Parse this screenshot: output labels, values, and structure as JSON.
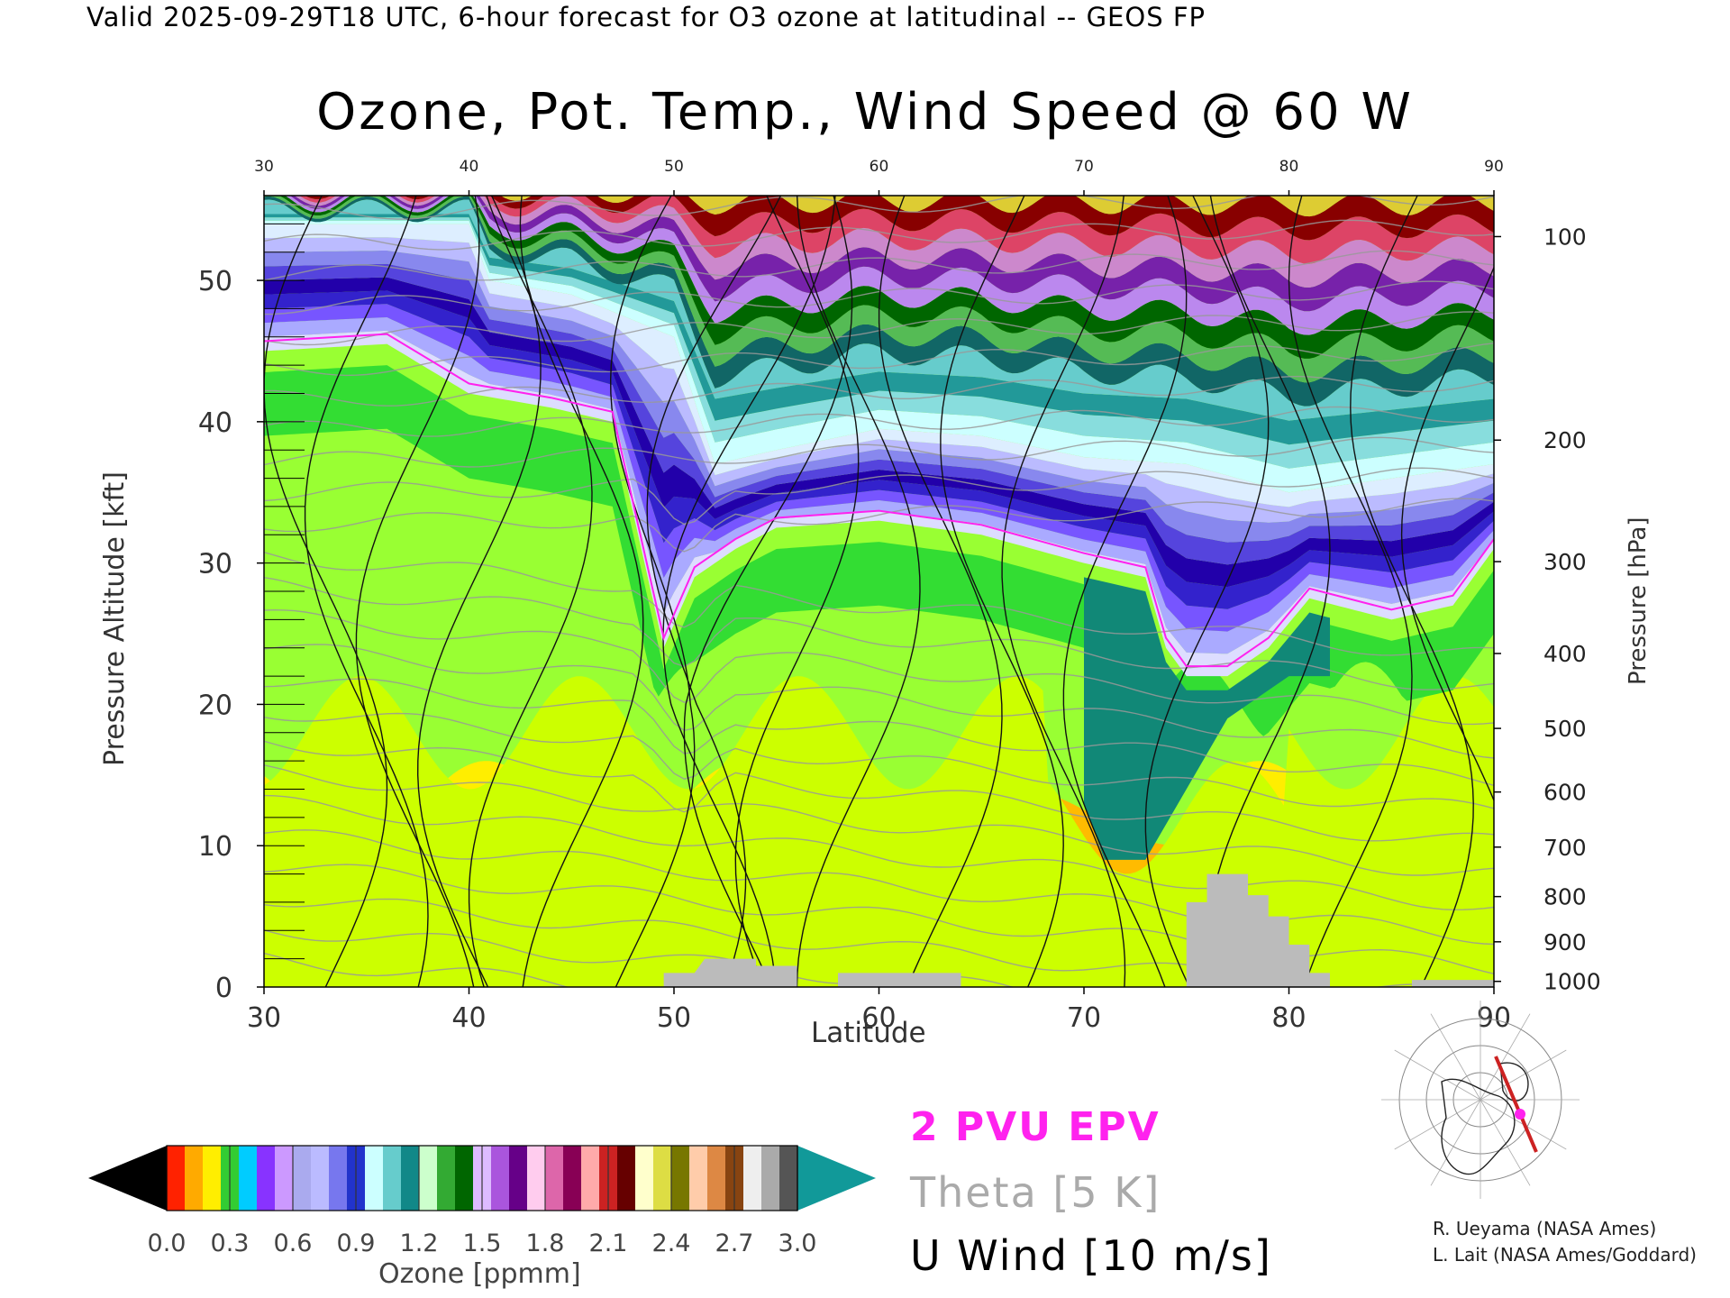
{
  "header": {
    "valid_line": "Valid 2025-09-29T18 UTC, 6-hour forecast for O3 ozone at latitudinal -- GEOS FP"
  },
  "chart_data": {
    "type": "heatmap",
    "title": "Ozone, Pot. Temp., Wind Speed @ 60 W",
    "xlabel": "Latitude",
    "ylabel": "Pressure Altitude [kft]",
    "ylabel_right": "Pressure [hPa]",
    "xlim": [
      30,
      90
    ],
    "ylim": [
      0,
      56
    ],
    "x_ticks": [
      30,
      40,
      50,
      60,
      70,
      80,
      90
    ],
    "y_ticks": [
      0,
      10,
      20,
      30,
      40,
      50
    ],
    "pressure_ticks": [
      {
        "label": "100",
        "kft": 53.1
      },
      {
        "label": "200",
        "kft": 38.7
      },
      {
        "label": "300",
        "kft": 30.1
      },
      {
        "label": "400",
        "kft": 23.6
      },
      {
        "label": "500",
        "kft": 18.3
      },
      {
        "label": "600",
        "kft": 13.8
      },
      {
        "label": "700",
        "kft": 9.9
      },
      {
        "label": "800",
        "kft": 6.4
      },
      {
        "label": "900",
        "kft": 3.2
      },
      {
        "label": "1000",
        "kft": 0.4
      }
    ],
    "tropopause_kft": [
      [
        30,
        45
      ],
      [
        36,
        45.5
      ],
      [
        40,
        42
      ],
      [
        44,
        41
      ],
      [
        47,
        40
      ],
      [
        49.5,
        24
      ],
      [
        51,
        29
      ],
      [
        53,
        31
      ],
      [
        55,
        32.5
      ],
      [
        60,
        33
      ],
      [
        65,
        32
      ],
      [
        70,
        30
      ],
      [
        73,
        29
      ],
      [
        74,
        24
      ],
      [
        75,
        22
      ],
      [
        77,
        22
      ],
      [
        79,
        24
      ],
      [
        81,
        27.5
      ],
      [
        85,
        26
      ],
      [
        88,
        27
      ],
      [
        90,
        31
      ]
    ],
    "stratosphere_top_kft": [
      [
        30,
        54
      ],
      [
        40,
        54
      ],
      [
        41,
        50
      ],
      [
        45,
        49
      ],
      [
        50,
        46
      ],
      [
        52,
        37
      ],
      [
        55,
        38
      ],
      [
        60,
        39.5
      ],
      [
        65,
        39
      ],
      [
        70,
        37.5
      ],
      [
        75,
        37
      ],
      [
        80,
        35
      ],
      [
        85,
        36
      ],
      [
        90,
        37
      ]
    ],
    "dry_tongue_kft": [
      [
        70,
        13
      ],
      [
        71,
        9
      ],
      [
        73,
        9
      ],
      [
        75,
        14
      ],
      [
        77,
        19
      ],
      [
        80,
        22
      ],
      [
        82,
        22
      ]
    ],
    "terrain_kft": [
      [
        49.5,
        0
      ],
      [
        49.5,
        1
      ],
      [
        51,
        1
      ],
      [
        51.5,
        2
      ],
      [
        54,
        2
      ],
      [
        54,
        1.5
      ],
      [
        56,
        1.5
      ],
      [
        56,
        0
      ],
      [
        58,
        0
      ],
      [
        58,
        1
      ],
      [
        64,
        1
      ],
      [
        64,
        0
      ],
      [
        75,
        0
      ],
      [
        75,
        6
      ],
      [
        76,
        6
      ],
      [
        76,
        8
      ],
      [
        78,
        8
      ],
      [
        78,
        6.5
      ],
      [
        79,
        6.5
      ],
      [
        79,
        5
      ],
      [
        80,
        5
      ],
      [
        80,
        3
      ],
      [
        81,
        3
      ],
      [
        81,
        1
      ],
      [
        82,
        1
      ],
      [
        82,
        0
      ],
      [
        86,
        0
      ],
      [
        86,
        0.5
      ],
      [
        90,
        0.5
      ],
      [
        90,
        0
      ]
    ],
    "colorbar": {
      "label": "Ozone [ppmm]",
      "ticks": [
        "0.0",
        "0.3",
        "0.6",
        "0.9",
        "1.2",
        "1.5",
        "1.8",
        "2.1",
        "2.4",
        "2.7",
        "3.0"
      ],
      "colors": [
        "#ff2200",
        "#ffaa00",
        "#ffee00",
        "#33cc33",
        "#00ccff",
        "#8833ff",
        "#cc99ff",
        "#aaaaee",
        "#bbbbff",
        "#7777ee",
        "#2233cc",
        "#ccffff",
        "#66cccc",
        "#118888",
        "#ccffcc",
        "#33aa33",
        "#006600",
        "#ddbbff",
        "#aa55dd",
        "#660088",
        "#ffccee",
        "#dd66aa",
        "#880055",
        "#ffaaaa",
        "#cc2222",
        "#660000",
        "#ffffcc",
        "#dddd44",
        "#777700",
        "#ffccaa",
        "#dd8844",
        "#884411",
        "#eeeeee",
        "#aaaaaa",
        "#555555"
      ],
      "over_color": "#119999",
      "under_color": "#000000"
    },
    "legend": [
      {
        "label": "2 PVU EPV",
        "color": "#ff22ee"
      },
      {
        "label": "Theta [5 K]",
        "color": "#aaaaaa"
      },
      {
        "label": "U Wind [10 m/s]",
        "color": "#000000"
      }
    ]
  },
  "credits": [
    "R. Ueyama (NASA Ames)",
    "L. Lait (NASA Ames/Goddard)"
  ]
}
